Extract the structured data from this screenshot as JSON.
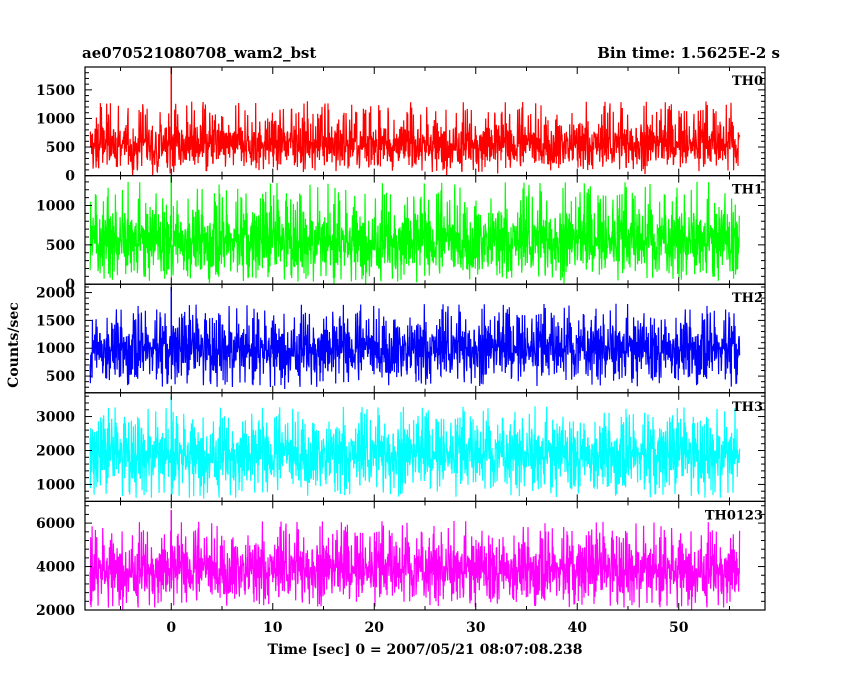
{
  "header": {
    "title": "ae070521080708_wam2_bst",
    "bin_time": "Bin time: 1.5625E-2 s"
  },
  "chart_data": {
    "type": "line",
    "xlabel": "Time [sec] 0 = 2007/05/21 08:07:08.238",
    "ylabel": "Counts/sec",
    "xlim": [
      -8.5,
      58.5
    ],
    "x_ticks": [
      0,
      10,
      20,
      30,
      40,
      50
    ],
    "data_x_range": [
      -8,
      56
    ],
    "bin_time": 0.015625,
    "grid": false,
    "panels": [
      {
        "name": "TH0",
        "color": "#ff0000",
        "ylim": [
          0,
          1900
        ],
        "y_ticks": [
          0,
          500,
          1000,
          1500
        ],
        "mean": 560,
        "typical_range": [
          60,
          1300
        ],
        "peak": 1900
      },
      {
        "name": "TH1",
        "color": "#00ff00",
        "ylim": [
          0,
          1380
        ],
        "y_ticks": [
          0,
          500,
          1000
        ],
        "mean": 560,
        "typical_range": [
          30,
          1300
        ],
        "peak": 1380
      },
      {
        "name": "TH2",
        "color": "#0000ff",
        "ylim": [
          200,
          2150
        ],
        "y_ticks": [
          500,
          1000,
          1500,
          2000
        ],
        "mean": 1000,
        "typical_range": [
          300,
          1800
        ],
        "peak": 2100
      },
      {
        "name": "TH3",
        "color": "#00ffff",
        "ylim": [
          500,
          3700
        ],
        "y_ticks": [
          1000,
          2000,
          3000
        ],
        "mean": 1900,
        "typical_range": [
          600,
          3300
        ],
        "peak": 3600
      },
      {
        "name": "TH0123",
        "color": "#ff00ff",
        "ylim": [
          2000,
          7000
        ],
        "y_ticks": [
          2000,
          4000,
          6000
        ],
        "mean": 3900,
        "typical_range": [
          2100,
          6100
        ],
        "peak": 6600
      }
    ]
  }
}
